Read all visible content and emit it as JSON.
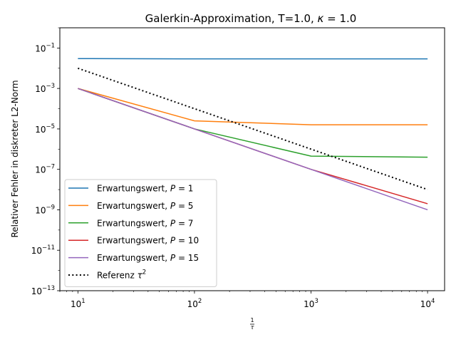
{
  "chart_data": {
    "type": "line",
    "title": "Galerkin-Approximation, T=1.0, κ = 1.0",
    "xlabel": "1/τ",
    "ylabel": "Relativer Fehler in diskreter L2-Norm",
    "xscale": "log",
    "yscale": "log",
    "xlim": [
      7,
      14000
    ],
    "ylim": [
      1e-13,
      1
    ],
    "xticks": [
      {
        "value": 10,
        "base": "10",
        "exp": "1"
      },
      {
        "value": 100,
        "base": "10",
        "exp": "2"
      },
      {
        "value": 1000,
        "base": "10",
        "exp": "3"
      },
      {
        "value": 10000,
        "base": "10",
        "exp": "4"
      }
    ],
    "yticks": [
      {
        "value": 0.1,
        "base": "10",
        "exp": "−1"
      },
      {
        "value": 0.001,
        "base": "10",
        "exp": "−3"
      },
      {
        "value": 1e-05,
        "base": "10",
        "exp": "−5"
      },
      {
        "value": 1e-07,
        "base": "10",
        "exp": "−7"
      },
      {
        "value": 1e-09,
        "base": "10",
        "exp": "−9"
      },
      {
        "value": 1e-11,
        "base": "10",
        "exp": "−11"
      },
      {
        "value": 1e-13,
        "base": "10",
        "exp": "−13"
      }
    ],
    "grid": false,
    "legend_position": "lower-left",
    "x": [
      10,
      100,
      1000,
      10000
    ],
    "series": [
      {
        "label_prefix": "Erwartungswert, ",
        "label_var": "P",
        "label_value": " = 1",
        "color": "#1f77b4",
        "style": "solid",
        "values": [
          0.03,
          0.029,
          0.029,
          0.029
        ]
      },
      {
        "label_prefix": "Erwartungswert, ",
        "label_var": "P",
        "label_value": " = 5",
        "color": "#ff7f0e",
        "style": "solid",
        "values": [
          0.001,
          2.5e-05,
          1.6e-05,
          1.6e-05
        ]
      },
      {
        "label_prefix": "Erwartungswert, ",
        "label_var": "P",
        "label_value": " = 7",
        "color": "#2ca02c",
        "style": "solid",
        "values": [
          0.001,
          1e-05,
          4.5e-07,
          4e-07
        ]
      },
      {
        "label_prefix": "Erwartungswert, ",
        "label_var": "P",
        "label_value": " = 10",
        "color": "#d62728",
        "style": "solid",
        "values": [
          0.001,
          1e-05,
          1e-07,
          2e-09
        ]
      },
      {
        "label_prefix": "Erwartungswert, ",
        "label_var": "P",
        "label_value": " = 15",
        "color": "#9467bd",
        "style": "solid",
        "values": [
          0.001,
          1e-05,
          1e-07,
          1e-09
        ]
      },
      {
        "label_prefix": "Referenz ",
        "label_var": "τ",
        "label_value": "2",
        "label_sup": true,
        "color": "#000000",
        "style": "dotted",
        "values": [
          0.01,
          0.0001,
          1e-06,
          1e-08
        ]
      }
    ]
  }
}
